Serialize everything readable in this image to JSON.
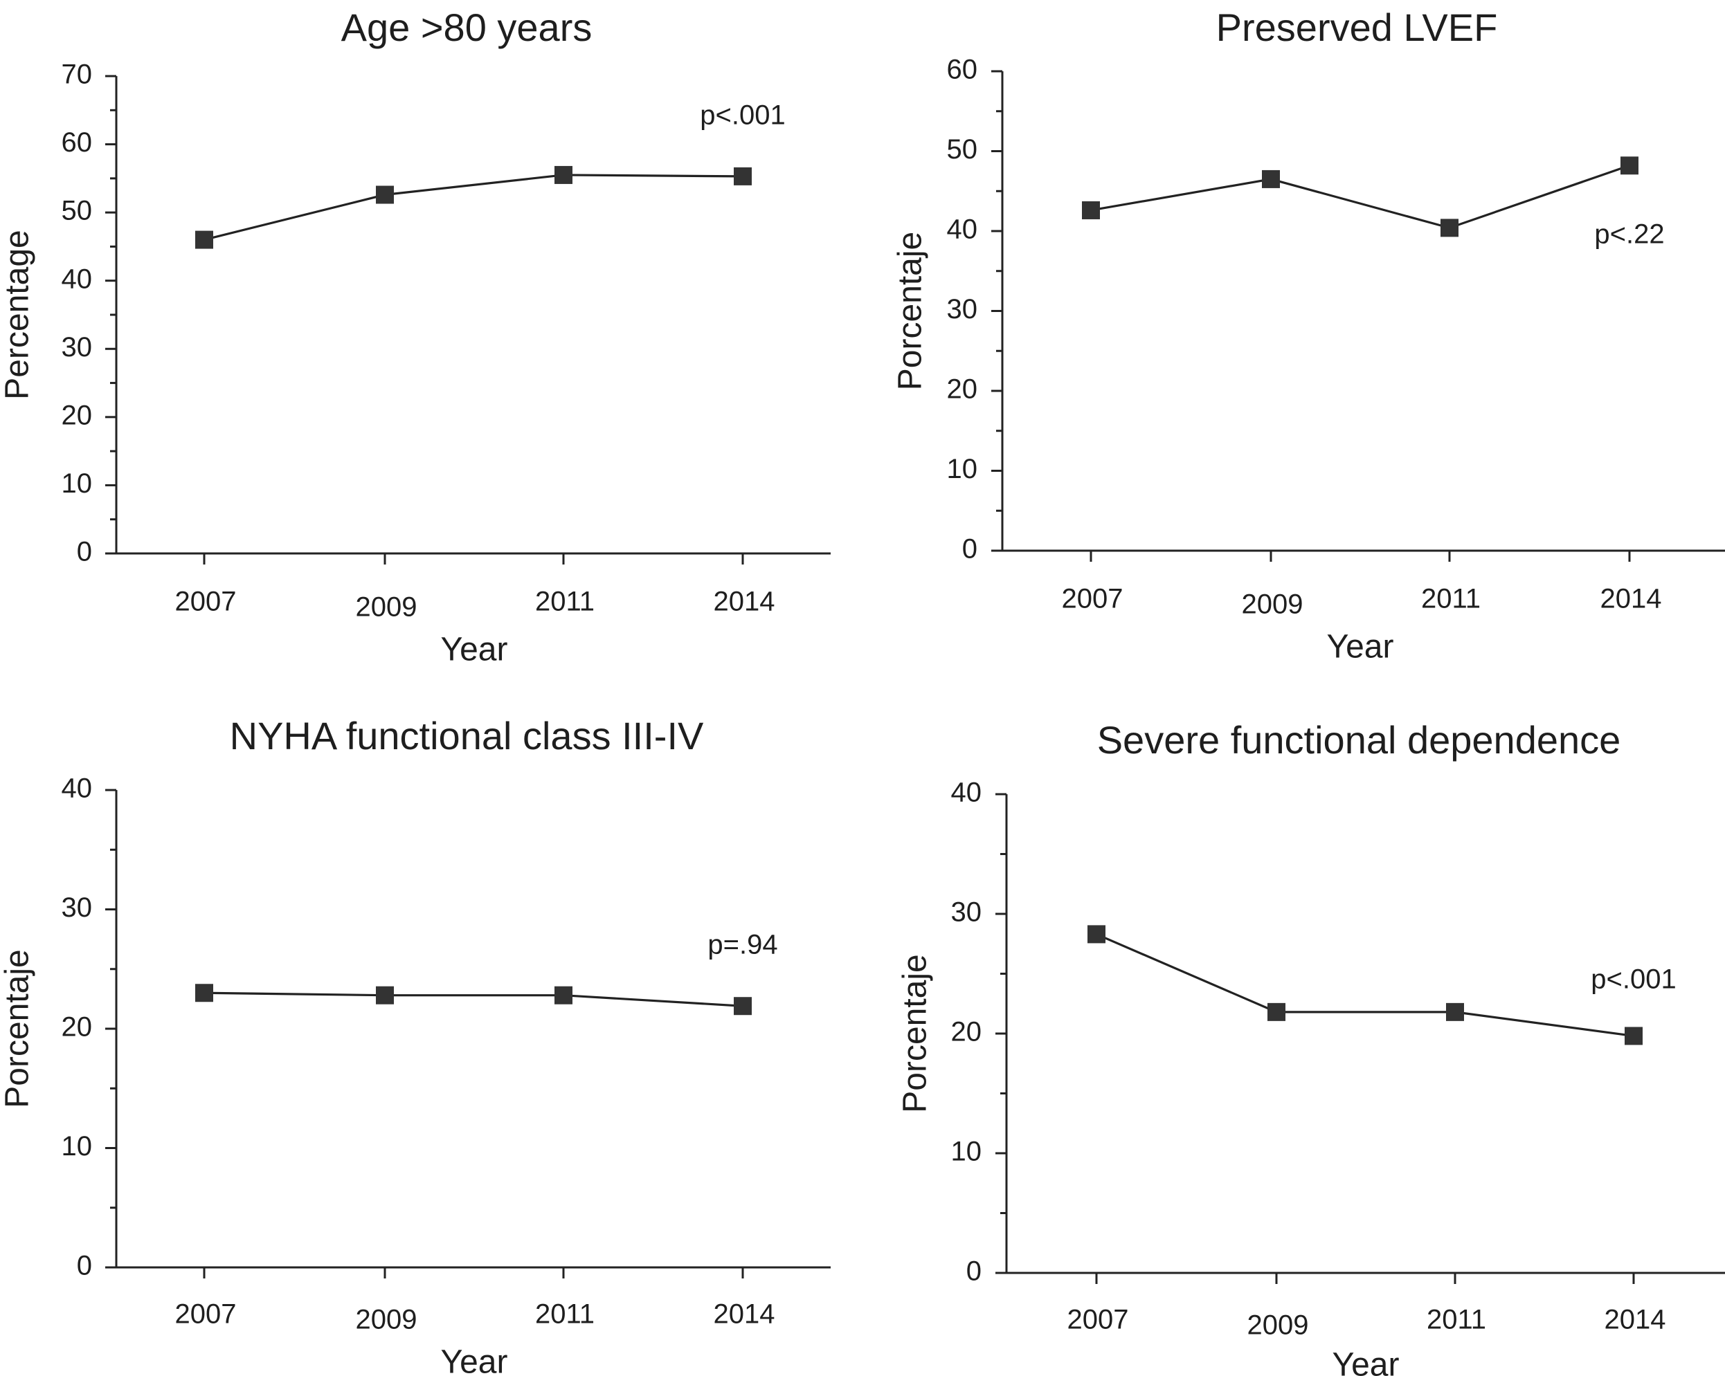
{
  "chart_data": [
    {
      "type": "line",
      "title": "Age >80 years",
      "xlabel": "Year",
      "ylabel": "Percentage",
      "categories": [
        "2007",
        "2009",
        "2011",
        "2014"
      ],
      "values": [
        46,
        52.6,
        55.5,
        55.3
      ],
      "ylim": [
        0,
        70
      ],
      "yticks": [
        0,
        10,
        20,
        30,
        40,
        50,
        60,
        70
      ],
      "annotation": "p<.001",
      "annotation_pos": {
        "x": 3,
        "y": 64
      }
    },
    {
      "type": "line",
      "title": "Preserved LVEF",
      "xlabel": "Year",
      "ylabel": "Porcentaje",
      "categories": [
        "2007",
        "2009",
        "2011",
        "2014"
      ],
      "values": [
        42.6,
        46.5,
        40.4,
        48.2
      ],
      "ylim": [
        0,
        60
      ],
      "yticks": [
        0,
        10,
        20,
        30,
        40,
        50,
        60
      ],
      "annotation": "p<.22",
      "annotation_pos": {
        "x": 3,
        "y": 39.4
      }
    },
    {
      "type": "line",
      "title": "NYHA functional class III-IV",
      "xlabel": "Year",
      "ylabel": "Porcentaje",
      "categories": [
        "2007",
        "2009",
        "2011",
        "2014"
      ],
      "values": [
        23.0,
        22.8,
        22.8,
        21.9
      ],
      "ylim": [
        0,
        40
      ],
      "yticks": [
        0,
        10,
        20,
        30,
        40
      ],
      "annotation": "p=.94",
      "annotation_pos": {
        "x": 3,
        "y": 26.9
      }
    },
    {
      "type": "line",
      "title": "Severe functional dependence",
      "xlabel": "Year",
      "ylabel": "Porcentaje",
      "categories": [
        "2007",
        "2009",
        "2011",
        "2014"
      ],
      "values": [
        28.3,
        21.8,
        21.8,
        19.8
      ],
      "ylim": [
        0,
        40
      ],
      "yticks": [
        0,
        10,
        20,
        30,
        40
      ],
      "annotation": "p<.001",
      "annotation_pos": {
        "x": 3,
        "y": 24.4
      }
    }
  ]
}
